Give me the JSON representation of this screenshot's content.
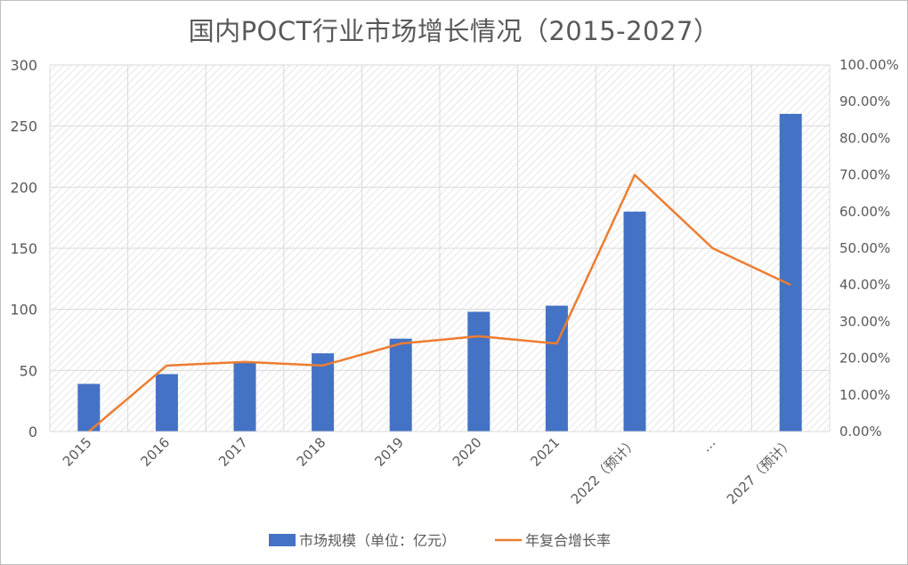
{
  "chart_data": {
    "type": "bar",
    "title": "国内POCT行业市场增长情况（2015-2027）",
    "categories": [
      "2015",
      "2016",
      "2017",
      "2018",
      "2019",
      "2020",
      "2021",
      "2022（预计）",
      "…",
      "2027（预计）"
    ],
    "series": [
      {
        "name": "市场规模（单位：亿元）",
        "type": "bar",
        "axis": "left",
        "color": "#4472c4",
        "values": [
          39,
          47,
          57,
          64,
          76,
          98,
          103,
          180,
          null,
          260
        ]
      },
      {
        "name": "年复合增长率",
        "type": "line",
        "axis": "right",
        "color": "#ed7d31",
        "values": [
          0.0,
          0.18,
          0.19,
          0.18,
          0.24,
          0.26,
          0.24,
          0.7,
          0.5,
          0.4
        ]
      }
    ],
    "y_left": {
      "min": 0,
      "max": 300,
      "ticks": [
        "0",
        "50",
        "100",
        "150",
        "200",
        "250",
        "300"
      ]
    },
    "y_right": {
      "min": 0,
      "max": 1.0,
      "ticks": [
        "0.00%",
        "10.00%",
        "20.00%",
        "30.00%",
        "40.00%",
        "50.00%",
        "60.00%",
        "70.00%",
        "80.00%",
        "90.00%",
        "100.00%"
      ]
    },
    "grid": true,
    "legend_position": "bottom"
  }
}
